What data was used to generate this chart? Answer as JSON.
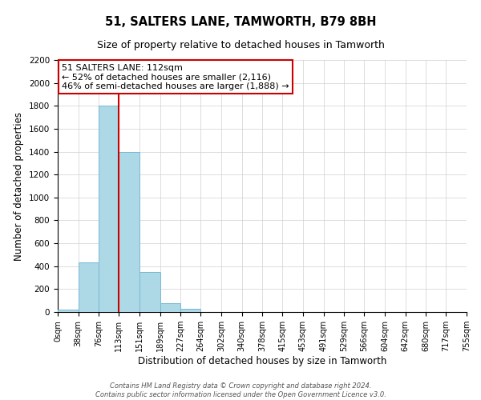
{
  "title": "51, SALTERS LANE, TAMWORTH, B79 8BH",
  "subtitle": "Size of property relative to detached houses in Tamworth",
  "xlabel": "Distribution of detached houses by size in Tamworth",
  "ylabel": "Number of detached properties",
  "bin_edges": [
    0,
    38,
    76,
    113,
    151,
    189,
    227,
    264,
    302,
    340,
    378,
    415,
    453,
    491,
    529,
    566,
    604,
    642,
    680,
    717,
    755
  ],
  "bin_labels": [
    "0sqm",
    "38sqm",
    "76sqm",
    "113sqm",
    "151sqm",
    "189sqm",
    "227sqm",
    "264sqm",
    "302sqm",
    "340sqm",
    "378sqm",
    "415sqm",
    "453sqm",
    "491sqm",
    "529sqm",
    "566sqm",
    "604sqm",
    "642sqm",
    "680sqm",
    "717sqm",
    "755sqm"
  ],
  "bar_heights": [
    20,
    430,
    1800,
    1400,
    350,
    75,
    25,
    0,
    0,
    0,
    0,
    0,
    0,
    0,
    0,
    0,
    0,
    0,
    0,
    0
  ],
  "bar_color": "#add8e6",
  "bar_edge_color": "#7ab8d4",
  "property_line_x": 113,
  "property_line_color": "#cc0000",
  "annotation_title": "51 SALTERS LANE: 112sqm",
  "annotation_line1": "← 52% of detached houses are smaller (2,116)",
  "annotation_line2": "46% of semi-detached houses are larger (1,888) →",
  "annotation_box_color": "#ffffff",
  "annotation_box_edgecolor": "#cc0000",
  "ylim": [
    0,
    2200
  ],
  "yticks": [
    0,
    200,
    400,
    600,
    800,
    1000,
    1200,
    1400,
    1600,
    1800,
    2000,
    2200
  ],
  "footer_line1": "Contains HM Land Registry data © Crown copyright and database right 2024.",
  "footer_line2": "Contains public sector information licensed under the Open Government Licence v3.0.",
  "background_color": "#ffffff",
  "grid_color": "#d0d0d0"
}
